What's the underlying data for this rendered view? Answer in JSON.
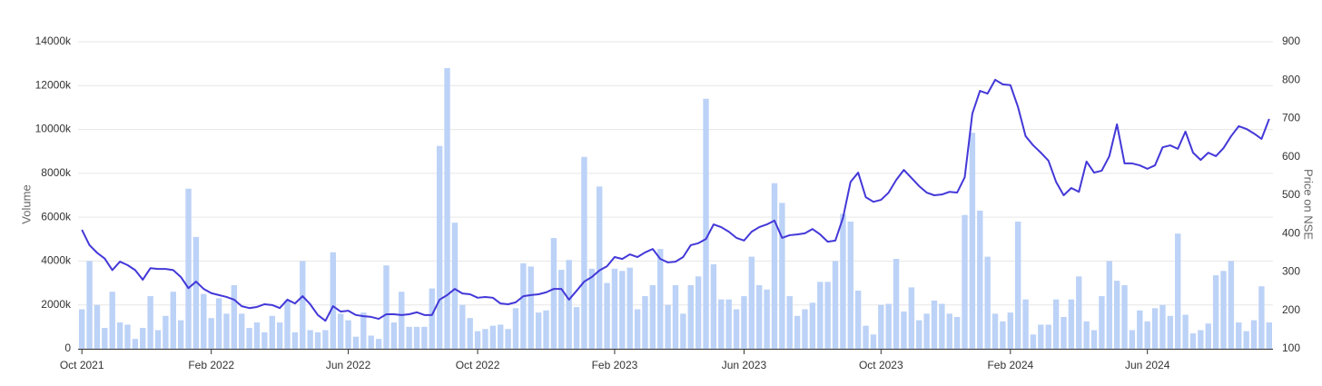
{
  "chart_data": {
    "type": "bar",
    "y_label": "Volume",
    "y2_label": "Price on NSE",
    "categories": [
      "Oct 2021",
      null,
      null,
      null,
      null,
      null,
      null,
      null,
      null,
      null,
      null,
      null,
      null,
      null,
      null,
      null,
      null,
      "Feb 2022",
      null,
      null,
      null,
      null,
      null,
      null,
      null,
      null,
      null,
      null,
      null,
      null,
      null,
      null,
      null,
      null,
      null,
      "Jun 2022",
      null,
      null,
      null,
      null,
      null,
      null,
      null,
      null,
      null,
      null,
      null,
      null,
      null,
      null,
      null,
      null,
      "Oct 2022",
      null,
      null,
      null,
      null,
      null,
      null,
      null,
      null,
      null,
      null,
      null,
      null,
      null,
      null,
      null,
      null,
      null,
      "Feb 2023",
      null,
      null,
      null,
      null,
      null,
      null,
      null,
      null,
      null,
      null,
      null,
      null,
      null,
      null,
      null,
      null,
      "Jun 2023",
      null,
      null,
      null,
      null,
      null,
      null,
      null,
      null,
      null,
      null,
      null,
      null,
      null,
      null,
      null,
      null,
      null,
      "Oct 2023",
      null,
      null,
      null,
      null,
      null,
      null,
      null,
      null,
      null,
      null,
      null,
      null,
      null,
      null,
      null,
      null,
      "Feb 2024",
      null,
      null,
      null,
      null,
      null,
      null,
      null,
      null,
      null,
      null,
      null,
      null,
      null,
      null,
      null,
      null,
      null,
      "Jun 2024",
      null,
      null,
      null,
      null,
      null,
      null,
      null,
      null,
      null,
      null,
      null,
      null,
      null,
      null,
      null,
      null
    ],
    "series": [
      {
        "type": "bar",
        "color": "#bcd2f7",
        "values": [
          1800,
          4000,
          2000,
          950,
          2600,
          1200,
          1100,
          450,
          950,
          2400,
          850,
          1500,
          2600,
          1300,
          7300,
          5100,
          2500,
          1400,
          2300,
          1600,
          2900,
          1600,
          950,
          1200,
          750,
          1500,
          1200,
          2200,
          750,
          4000,
          850,
          750,
          850,
          4400,
          1600,
          1300,
          550,
          1650,
          600,
          450,
          3800,
          1200,
          2600,
          1000,
          1000,
          1000,
          2750,
          9250,
          12800,
          5750,
          2000,
          1400,
          800,
          900,
          1050,
          1100,
          900,
          1850,
          3900,
          3750,
          1650,
          1750,
          5050,
          3600,
          4050,
          1900,
          8750,
          3650,
          7400,
          3000,
          3650,
          3550,
          3700,
          1800,
          2400,
          2900,
          4550,
          2000,
          2900,
          1600,
          2900,
          3300,
          11400,
          3850,
          2250,
          2250,
          1800,
          2400,
          4200,
          2900,
          2700,
          7550,
          6650,
          2400,
          1500,
          1800,
          2100,
          3050,
          3050,
          4000,
          6150,
          5800,
          2650,
          1050,
          650,
          2000,
          2050,
          4100,
          1700,
          2800,
          1300,
          1600,
          2200,
          2050,
          1600,
          1450,
          6100,
          9850,
          6300,
          4200,
          1600,
          1250,
          1650,
          5800,
          2250,
          650,
          1100,
          1100,
          2250,
          1450,
          2250,
          3300,
          1250,
          850,
          2400,
          4000,
          3100,
          2900,
          850,
          1750,
          1250,
          1850,
          2000,
          1500,
          5250,
          1550,
          700,
          850,
          1150,
          3350,
          3550,
          4000,
          1200,
          800,
          1300,
          2850,
          1200
        ]
      },
      {
        "type": "line",
        "axis": "y2",
        "color": "#4338d8",
        "values": [
          410,
          370,
          350,
          335,
          305,
          327,
          318,
          305,
          280,
          310,
          308,
          308,
          305,
          287,
          258,
          275,
          256,
          245,
          240,
          235,
          228,
          211,
          206,
          209,
          216,
          214,
          206,
          228,
          218,
          237,
          216,
          188,
          173,
          211,
          197,
          199,
          188,
          185,
          183,
          178,
          190,
          190,
          188,
          190,
          195,
          188,
          188,
          228,
          240,
          256,
          244,
          242,
          233,
          235,
          233,
          218,
          216,
          221,
          237,
          240,
          242,
          247,
          256,
          256,
          228,
          251,
          275,
          287,
          304,
          315,
          339,
          334,
          346,
          339,
          351,
          360,
          334,
          325,
          327,
          339,
          370,
          375,
          386,
          424,
          417,
          405,
          389,
          382,
          405,
          417,
          424,
          434,
          389,
          396,
          398,
          401,
          412,
          398,
          379,
          382,
          441,
          535,
          559,
          495,
          483,
          488,
          507,
          540,
          566,
          545,
          524,
          507,
          500,
          502,
          509,
          507,
          547,
          713,
          772,
          765,
          801,
          789,
          787,
          730,
          654,
          630,
          611,
          590,
          535,
          500,
          519,
          509,
          588,
          559,
          564,
          602,
          685,
          583,
          583,
          578,
          569,
          578,
          625,
          630,
          621,
          666,
          611,
          592,
          611,
          602,
          623,
          654,
          680,
          673,
          661,
          647,
          699
        ]
      }
    ],
    "ylim": [
      0,
      14000
    ],
    "yticks": [
      0,
      {
        "value": 2000,
        "label": "2000k"
      },
      {
        "value": 4000,
        "label": "4000k"
      },
      {
        "value": 6000,
        "label": "6000k"
      },
      {
        "value": 8000,
        "label": "8000k"
      },
      {
        "value": 10000,
        "label": "10000k"
      },
      {
        "value": 12000,
        "label": "12000k"
      },
      {
        "value": 14000,
        "label": "14000k"
      }
    ],
    "y2lim": [
      100,
      900
    ],
    "y2ticks": [
      100,
      200,
      300,
      400,
      500,
      600,
      700,
      800,
      900
    ],
    "grid": true
  }
}
